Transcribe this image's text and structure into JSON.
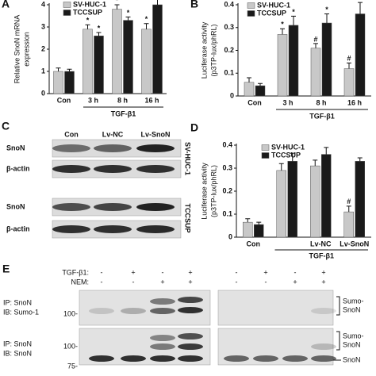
{
  "chart_data": [
    {
      "type": "bar",
      "panel": "A",
      "ylabel": [
        "Relative SnoN mRNA",
        "expression"
      ],
      "categories": [
        "Con",
        "3 h",
        "8 h",
        "16 h"
      ],
      "group_label": "TGF-β1",
      "ylim": [
        0,
        4
      ],
      "yticks": [
        0,
        1,
        2,
        3,
        4
      ],
      "series": [
        {
          "name": "SV-HUC-1",
          "color": "#c8c8c8",
          "values": [
            1.0,
            2.9,
            3.8,
            2.9
          ],
          "errors": [
            0.15,
            0.2,
            0.2,
            0.25
          ],
          "annotations": [
            null,
            "*",
            "*",
            "*"
          ]
        },
        {
          "name": "TCCSUP",
          "color": "#1a1a1a",
          "values": [
            1.0,
            2.6,
            3.3,
            4.0
          ],
          "errors": [
            0.1,
            0.15,
            0.15,
            0.25
          ],
          "annotations": [
            null,
            "*",
            "*",
            "*"
          ]
        }
      ]
    },
    {
      "type": "bar",
      "panel": "B",
      "ylabel": [
        "Luciferase activity",
        "(p3TP-lux/phRL)"
      ],
      "categories": [
        "Con",
        "3 h",
        "8 h",
        "16 h"
      ],
      "group_label": "TGF-β1",
      "ylim": [
        0,
        0.4
      ],
      "yticks": [
        0,
        0.1,
        0.2,
        0.3,
        0.4
      ],
      "series": [
        {
          "name": "SV-HUC-1",
          "color": "#c8c8c8",
          "values": [
            0.06,
            0.27,
            0.21,
            0.12
          ],
          "errors": [
            0.02,
            0.025,
            0.02,
            0.025
          ],
          "annotations": [
            null,
            "*",
            "#",
            "#"
          ]
        },
        {
          "name": "TCCSUP",
          "color": "#1a1a1a",
          "values": [
            0.045,
            0.31,
            0.32,
            0.36
          ],
          "errors": [
            0.01,
            0.04,
            0.04,
            0.05
          ],
          "annotations": [
            null,
            "*",
            "*",
            "*"
          ]
        }
      ]
    },
    {
      "type": "bar",
      "panel": "D",
      "ylabel": [
        "Luciferase activity",
        "(p3TP-lux/phRL)"
      ],
      "categories": [
        "Con",
        null,
        "Lv-NC",
        "Lv-SnoN"
      ],
      "group_label": "TGF-β1",
      "ylim": [
        0,
        0.4
      ],
      "yticks": [
        0,
        0.1,
        0.2,
        0.3,
        0.4
      ],
      "series": [
        {
          "name": "SV-HUC-1",
          "color": "#c8c8c8",
          "values": [
            0.065,
            0.29,
            0.31,
            0.11
          ],
          "errors": [
            0.015,
            0.03,
            0.025,
            0.025
          ],
          "annotations": [
            null,
            null,
            null,
            "#"
          ]
        },
        {
          "name": "TCCSUP",
          "color": "#1a1a1a",
          "values": [
            0.055,
            0.33,
            0.36,
            0.33
          ],
          "errors": [
            0.01,
            0.035,
            0.03,
            0.015
          ],
          "annotations": [
            null,
            null,
            null,
            null
          ]
        }
      ]
    }
  ],
  "panel_c": {
    "label": "C",
    "lanes": [
      "Con",
      "Lv-NC",
      "Lv-SnoN"
    ],
    "rows": [
      "SnoN",
      "β-actin",
      "SnoN",
      "β-actin"
    ],
    "cell_lines": [
      "SV-HUC-1",
      "TCCSUP"
    ]
  },
  "panel_e": {
    "label": "E",
    "treatments": [
      {
        "name": "TGF-β1:",
        "signs": [
          "-",
          "+",
          "-",
          "+",
          "-",
          "+",
          "-",
          "+"
        ]
      },
      {
        "name": "NEM:",
        "signs": [
          "-",
          "-",
          "+",
          "+",
          "-",
          "-",
          "+",
          "+"
        ]
      }
    ],
    "blots": [
      {
        "ip": "IP: SnoN",
        "ib": "IB: Sumo-1"
      },
      {
        "ip": "IP: SnoN",
        "ib": "IB: SnoN"
      }
    ],
    "markers": [
      "100-",
      "100-",
      "75-"
    ],
    "band_labels": [
      "Sumo-",
      "SnoN",
      "Sumo-",
      "SnoN",
      "SnoN"
    ]
  }
}
